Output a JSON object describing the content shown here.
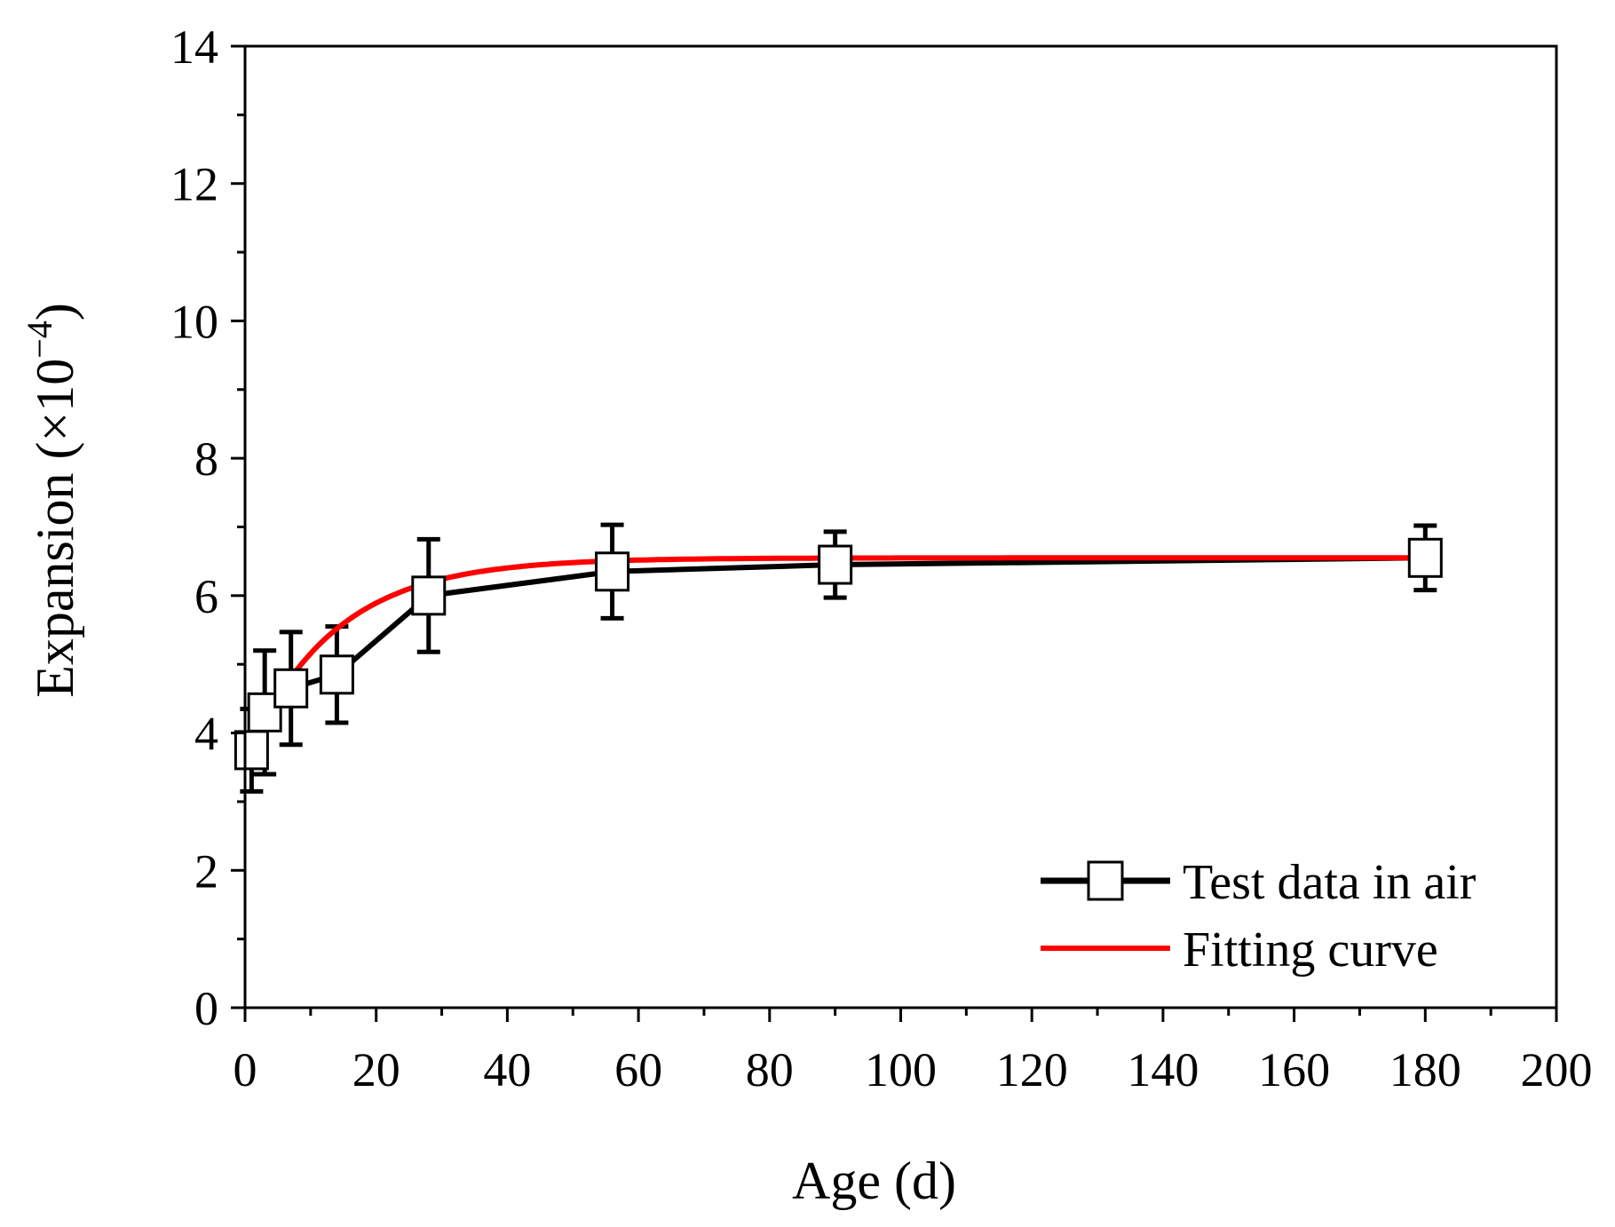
{
  "chart_data": {
    "type": "line",
    "title": "",
    "xlabel": "Age (d)",
    "ylabel_prefix": "Expansion (×10",
    "ylabel_exp": "−4",
    "ylabel_suffix": ")",
    "xlim": [
      0,
      200
    ],
    "ylim": [
      0,
      14
    ],
    "xticks": [
      0,
      20,
      40,
      60,
      80,
      100,
      120,
      140,
      160,
      180,
      200
    ],
    "yticks": [
      0,
      2,
      4,
      6,
      8,
      10,
      12,
      14
    ],
    "grid": false,
    "legend_position": "bottom-right",
    "series": [
      {
        "name": "Test data in air",
        "style": "line-square-marker",
        "color": "#000000",
        "x": [
          1,
          3,
          7,
          14,
          28,
          56,
          90,
          180
        ],
        "y": [
          3.75,
          4.3,
          4.65,
          4.85,
          6.0,
          6.35,
          6.45,
          6.55
        ],
        "error": [
          0.6,
          0.9,
          0.82,
          0.7,
          0.82,
          0.68,
          0.48,
          0.47
        ]
      },
      {
        "name": "Fitting curve",
        "style": "line",
        "color": "#ff0000",
        "model": {
          "a": 6.55,
          "b": 2.95,
          "k": 0.075
        },
        "x_range": [
          1,
          180
        ]
      }
    ]
  }
}
